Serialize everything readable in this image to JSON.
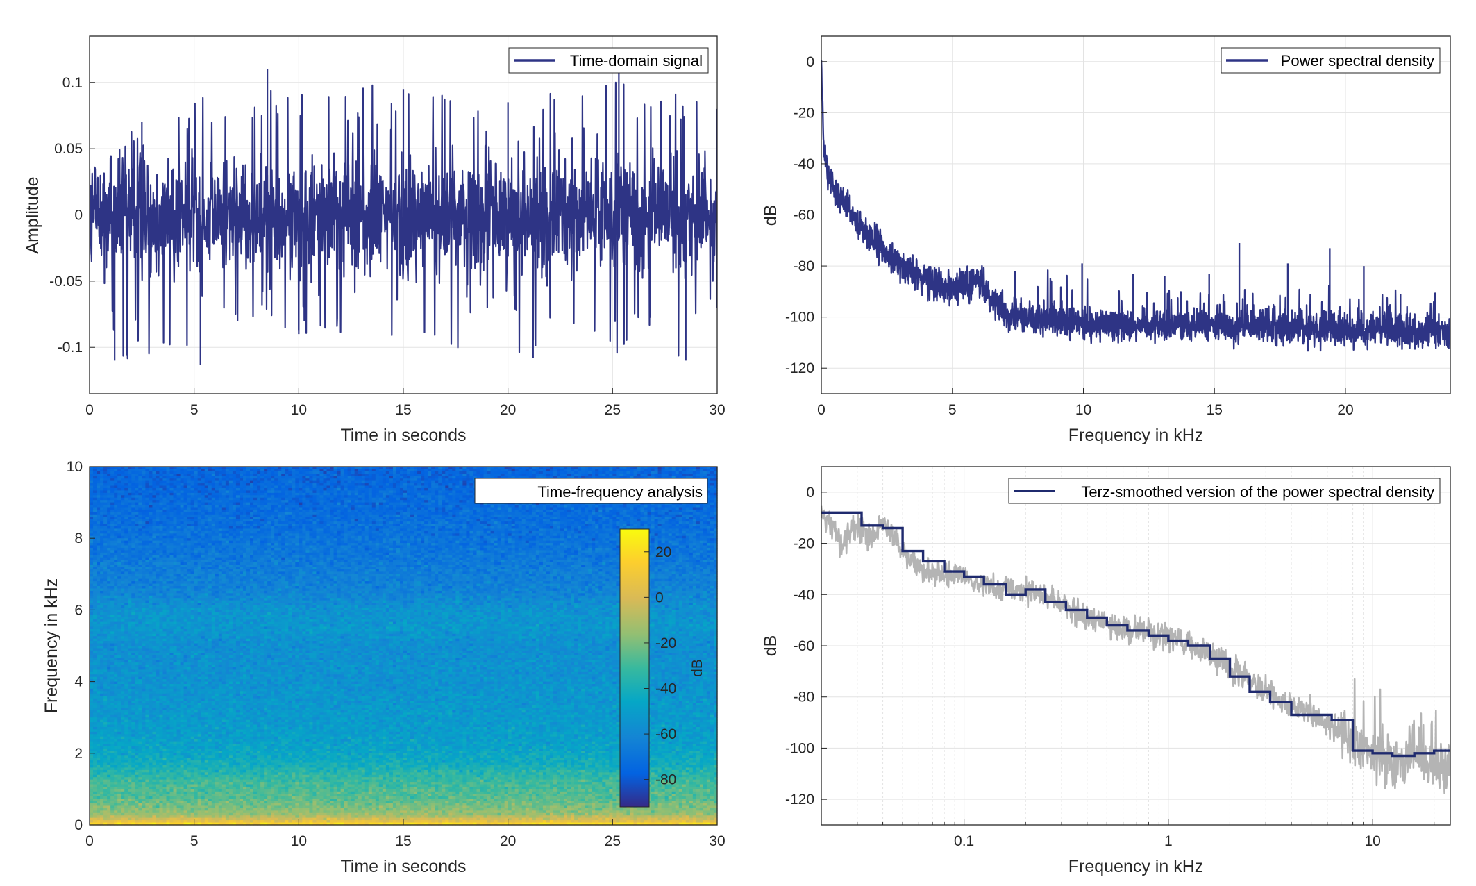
{
  "colors": {
    "series": "#2e3485",
    "smoothed": "#1f2a6e",
    "raw_gray": "#b4b4b4",
    "grid": "#e3e3e3",
    "axis": "#262626"
  },
  "chart_data": [
    {
      "id": "time",
      "type": "line",
      "xlabel": "Time in seconds",
      "ylabel": "Amplitude",
      "xlim": [
        0,
        30
      ],
      "ylim": [
        -0.135,
        0.135
      ],
      "xticks": [
        0,
        5,
        10,
        15,
        20,
        25,
        30
      ],
      "yticks": [
        -0.1,
        -0.05,
        0,
        0.05,
        0.1
      ],
      "ytick_labels": [
        "-0.1",
        "-0.05",
        "0",
        "0.05",
        "0.1"
      ],
      "grid": true,
      "legend_position": "top-right",
      "series": [
        {
          "name": "Time-domain signal",
          "envelope_upper": [
            [
              0,
              0.035
            ],
            [
              2.5,
              0.07
            ],
            [
              8.5,
              0.11
            ],
            [
              15,
              0.095
            ],
            [
              20,
              0.085
            ],
            [
              25.3,
              0.107
            ],
            [
              30,
              0.08
            ]
          ],
          "envelope_lower": [
            [
              0,
              -0.03
            ],
            [
              1.2,
              -0.11
            ],
            [
              5.3,
              -0.113
            ],
            [
              10,
              -0.09
            ],
            [
              21.2,
              -0.108
            ],
            [
              28.5,
              -0.11
            ],
            [
              30,
              -0.07
            ]
          ]
        }
      ]
    },
    {
      "id": "psd",
      "type": "line",
      "xlabel": "Frequency in kHz",
      "ylabel": "dB",
      "xlim": [
        0,
        24
      ],
      "ylim": [
        -130,
        10
      ],
      "xticks": [
        0,
        5,
        10,
        15,
        20
      ],
      "yticks": [
        -120,
        -100,
        -80,
        -60,
        -40,
        -20,
        0
      ],
      "grid": true,
      "legend_position": "top-right",
      "series": [
        {
          "name": "Power spectral density",
          "x": [
            0,
            0.1,
            0.3,
            0.6,
            1,
            1.5,
            2,
            2.5,
            3,
            3.5,
            4,
            4.5,
            5,
            5.5,
            6,
            6.5,
            7,
            8,
            9,
            10,
            12,
            14,
            16,
            18,
            20,
            22,
            24
          ],
          "y": [
            0,
            -35,
            -45,
            -52,
            -58,
            -64,
            -70,
            -75,
            -80,
            -83,
            -85,
            -87,
            -88,
            -87,
            -86,
            -92,
            -98,
            -101,
            -102,
            -103,
            -103,
            -103,
            -104,
            -104,
            -105,
            -105,
            -106
          ],
          "peaks": [
            [
              9.95,
              -79
            ],
            [
              11.9,
              -83
            ],
            [
              13.1,
              -84
            ],
            [
              14.8,
              -83
            ],
            [
              15.95,
              -71
            ],
            [
              17.8,
              -79
            ],
            [
              19.4,
              -73
            ],
            [
              20.7,
              -80
            ],
            [
              22.1,
              -91
            ]
          ]
        }
      ]
    },
    {
      "id": "spectrogram",
      "type": "heatmap",
      "title": "Time-frequency analysis",
      "xlabel": "Time in seconds",
      "ylabel": "Frequency in kHz",
      "xlim": [
        0,
        30
      ],
      "ylim": [
        0,
        10
      ],
      "xticks": [
        0,
        5,
        10,
        15,
        20,
        25,
        30
      ],
      "yticks": [
        0,
        2,
        4,
        6,
        8,
        10
      ],
      "colorbar": {
        "label": "dB",
        "limits": [
          -92,
          30
        ],
        "ticks": [
          20,
          0,
          -20,
          -40,
          -60,
          -80
        ]
      },
      "level_profile_db": [
        [
          0.0,
          25
        ],
        [
          0.1,
          5
        ],
        [
          0.3,
          -15
        ],
        [
          0.7,
          -25
        ],
        [
          1.2,
          -30
        ],
        [
          1.7,
          -42
        ],
        [
          2.2,
          -48
        ],
        [
          3.0,
          -52
        ],
        [
          4.0,
          -55
        ],
        [
          5.0,
          -57
        ],
        [
          5.5,
          -53
        ],
        [
          6.0,
          -55
        ],
        [
          6.5,
          -62
        ],
        [
          7.5,
          -68
        ],
        [
          8.5,
          -72
        ],
        [
          10.0,
          -76
        ]
      ]
    },
    {
      "id": "terz",
      "type": "line",
      "xlabel": "Frequency in kHz",
      "ylabel": "dB",
      "xscale": "log",
      "xlim": [
        0.02,
        24
      ],
      "ylim": [
        -130,
        10
      ],
      "xticks": [
        0.1,
        1,
        10
      ],
      "yticks": [
        -120,
        -100,
        -80,
        -60,
        -40,
        -20,
        0
      ],
      "grid": true,
      "legend_position": "top-right",
      "series": [
        {
          "name": "Terz-smoothed version of the power spectral density",
          "x": [
            0.02,
            0.025,
            0.0315,
            0.04,
            0.05,
            0.063,
            0.08,
            0.1,
            0.125,
            0.16,
            0.2,
            0.25,
            0.315,
            0.4,
            0.5,
            0.63,
            0.8,
            1,
            1.25,
            1.6,
            2,
            2.5,
            3.15,
            4,
            5,
            6.3,
            8,
            10,
            12.5,
            16,
            20,
            24
          ],
          "y": [
            -8,
            -8,
            -13,
            -14,
            -23,
            -27,
            -31,
            -33,
            -36,
            -40,
            -38,
            -43,
            -46,
            -49,
            -52,
            -54,
            -56,
            -58,
            -60,
            -65,
            -72,
            -78,
            -82,
            -87,
            -87,
            -89,
            -101,
            -102,
            -103,
            -102,
            -101,
            -101
          ],
          "step": true
        },
        {
          "name": "",
          "description_raw": "unsmoothed PSD (gray)",
          "x": [
            0.02,
            0.025,
            0.03,
            0.035,
            0.04,
            0.05,
            0.06,
            0.08,
            0.1,
            0.15,
            0.2,
            0.3,
            0.4,
            0.6,
            0.8,
            1,
            1.5,
            2,
            3,
            4,
            5,
            6,
            7,
            8,
            10,
            15,
            20,
            24
          ],
          "y": [
            -6,
            -20,
            -13,
            -18,
            -12,
            -24,
            -29,
            -32,
            -34,
            -38,
            -38,
            -44,
            -49,
            -53,
            -54,
            -57,
            -62,
            -68,
            -78,
            -84,
            -86,
            -91,
            -93,
            -100,
            -103,
            -105,
            -107,
            -108
          ]
        }
      ]
    }
  ]
}
